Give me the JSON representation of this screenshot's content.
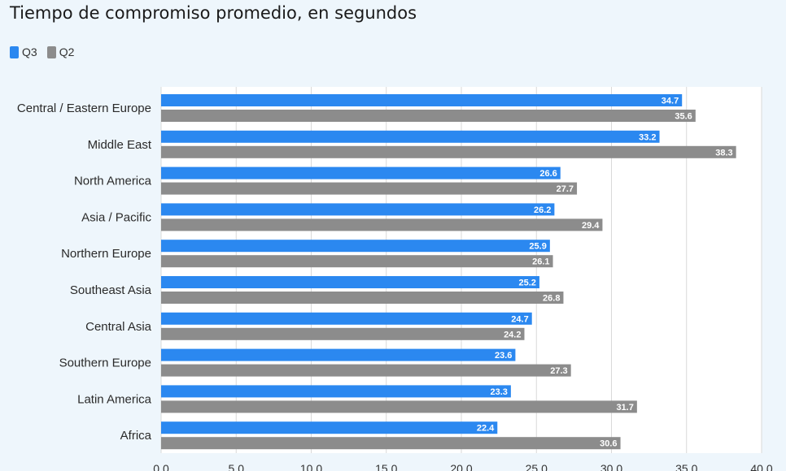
{
  "chart_data": {
    "type": "bar",
    "orientation": "horizontal",
    "title": "Tiempo de compromiso promedio, en segundos",
    "categories": [
      "Central / Eastern Europe",
      "Middle East",
      "North America",
      "Asia / Pacific",
      "Northern Europe",
      "Southeast Asia",
      "Central Asia",
      "Southern Europe",
      "Latin America",
      "Africa"
    ],
    "series": [
      {
        "name": "Q3",
        "color": "#2b88f0",
        "values": [
          34.7,
          33.2,
          26.6,
          26.2,
          25.9,
          25.2,
          24.7,
          23.6,
          23.3,
          22.4
        ]
      },
      {
        "name": "Q2",
        "color": "#8c8c8c",
        "values": [
          35.6,
          38.3,
          27.7,
          29.4,
          26.1,
          26.8,
          24.2,
          27.3,
          31.7,
          30.6
        ]
      }
    ],
    "xlim": [
      0,
      40
    ],
    "xticks": [
      "0.0",
      "5.0",
      "10.0",
      "15.0",
      "20.0",
      "25.0",
      "30.0",
      "35.0",
      "40.0"
    ],
    "grid": true,
    "legend": "top-left"
  }
}
